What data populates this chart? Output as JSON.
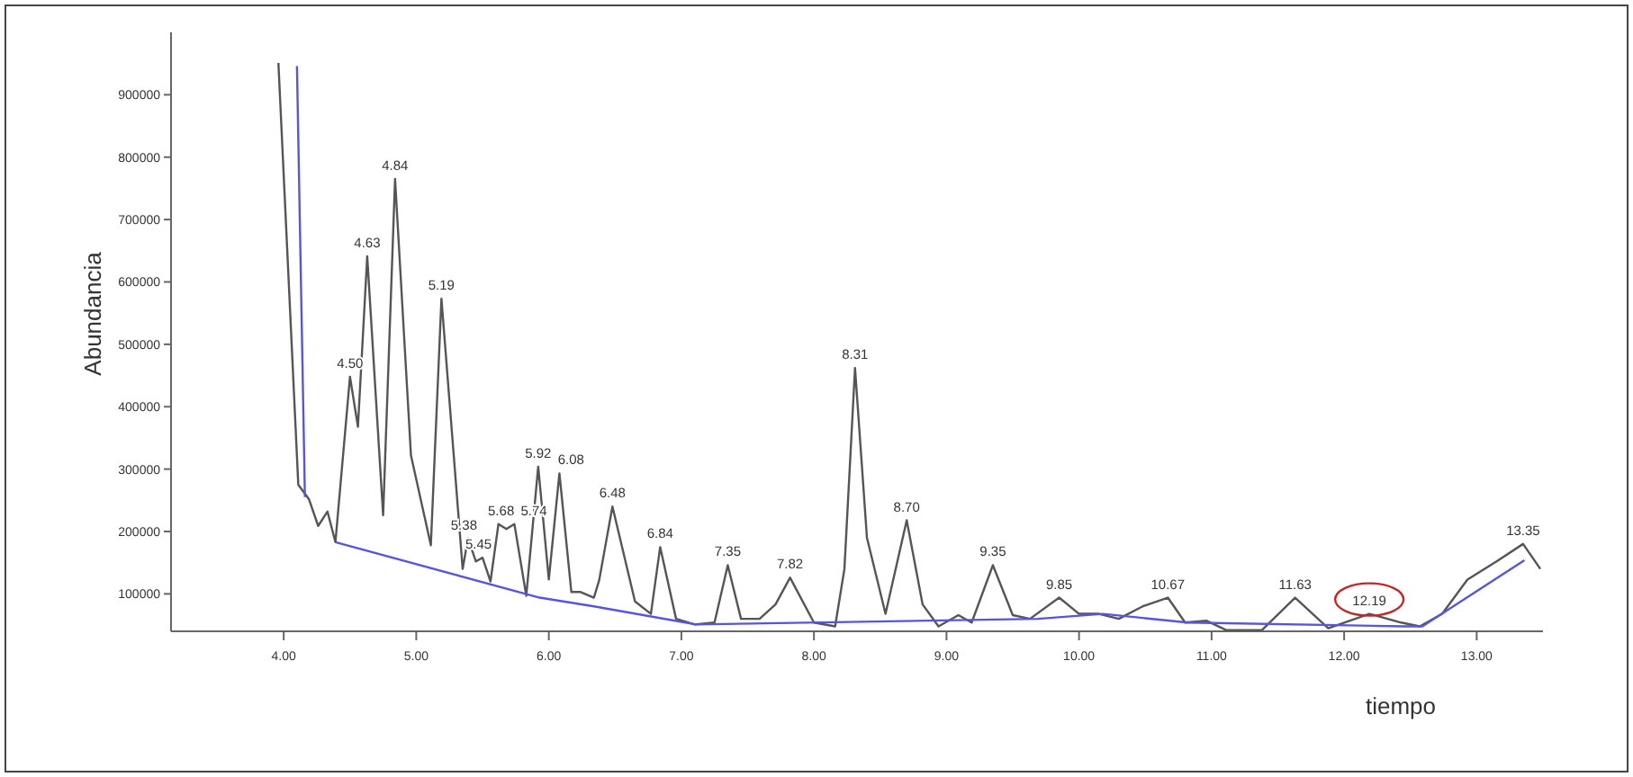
{
  "chart_data": {
    "type": "line",
    "xlabel": "tiempo",
    "ylabel": "Abundancia",
    "xlim": [
      3.15,
      13.5
    ],
    "ylim": [
      40000,
      1000000
    ],
    "xticks": [
      {
        "value": 4,
        "label": "4.00"
      },
      {
        "value": 5,
        "label": "5.00"
      },
      {
        "value": 6,
        "label": "6.00"
      },
      {
        "value": 7,
        "label": "7.00"
      },
      {
        "value": 8,
        "label": "8.00"
      },
      {
        "value": 9,
        "label": "9.00"
      },
      {
        "value": 10,
        "label": "10.00"
      },
      {
        "value": 11,
        "label": "11.00"
      },
      {
        "value": 12,
        "label": "12.00"
      },
      {
        "value": 13,
        "label": "13.00"
      }
    ],
    "yticks": [
      100000,
      200000,
      300000,
      400000,
      500000,
      600000,
      700000,
      800000,
      900000
    ],
    "grid": false,
    "marker": "none",
    "line_style": "solid",
    "series": [
      {
        "color": "#555555",
        "x": [
          3.96,
          4.11,
          4.19,
          4.26,
          4.33,
          4.39,
          4.5,
          4.56,
          4.63,
          4.75,
          4.84,
          4.96,
          5.11,
          5.19,
          5.35,
          5.39,
          5.45,
          5.5,
          5.56,
          5.62,
          5.68,
          5.74,
          5.83,
          5.92,
          6.0,
          6.08,
          6.17,
          6.24,
          6.34,
          6.38,
          6.48,
          6.65,
          6.77,
          6.84,
          6.96,
          7.1,
          7.25,
          7.35,
          7.45,
          7.59,
          7.71,
          7.82,
          8.0,
          8.16,
          8.23,
          8.31,
          8.4,
          8.54,
          8.7,
          8.82,
          8.94,
          9.09,
          9.19,
          9.35,
          9.5,
          9.63,
          9.85,
          10.0,
          10.15,
          10.3,
          10.48,
          10.67,
          10.8,
          10.96,
          11.11,
          11.38,
          11.63,
          11.88,
          12.19,
          12.43,
          12.57,
          12.74,
          12.93,
          13.15,
          13.35,
          13.48
        ],
        "values": [
          951000,
          275000,
          252000,
          209000,
          232000,
          183000,
          448000,
          368000,
          641000,
          226000,
          765000,
          322000,
          178000,
          573000,
          140000,
          189000,
          152000,
          158000,
          120000,
          212000,
          204000,
          212000,
          97000,
          304000,
          123000,
          293000,
          103000,
          103000,
          94000,
          122000,
          240000,
          88000,
          68000,
          175000,
          60000,
          51000,
          54000,
          146000,
          60000,
          60000,
          83000,
          126000,
          54000,
          48000,
          140000,
          462000,
          190000,
          68000,
          218000,
          83000,
          48000,
          66000,
          54000,
          146000,
          66000,
          60000,
          94000,
          68000,
          68000,
          60000,
          80000,
          94000,
          54000,
          57000,
          42000,
          42000,
          94000,
          45000,
          68000,
          54000,
          48000,
          68000,
          123000,
          152000,
          180000,
          140000
        ]
      },
      {
        "color": "#5555dd",
        "x": [
          4.1,
          4.16,
          4.2,
          4.39,
          5.93,
          6.34,
          7.11,
          9.69,
          10.18,
          10.82,
          12.45,
          12.59,
          13.36
        ],
        "values": [
          946000,
          255000,
          null,
          183000,
          94000,
          80000,
          51000,
          60000,
          68000,
          54000,
          48000,
          48000,
          154000
        ]
      }
    ],
    "annotations": [
      {
        "text": "4.50",
        "x": 4.5,
        "y": 448000
      },
      {
        "text": "4.63",
        "x": 4.63,
        "y": 641000
      },
      {
        "text": "4.84",
        "x": 4.84,
        "y": 765000
      },
      {
        "text": "5.19",
        "x": 5.19,
        "y": 573000
      },
      {
        "text": "5.38",
        "x": 5.36,
        "y": 189000
      },
      {
        "text": "5.45",
        "x": 5.47,
        "y": 158000
      },
      {
        "text": "5.68",
        "x": 5.64,
        "y": 212000
      },
      {
        "text": "5.74",
        "x": 5.77,
        "y": 212000
      },
      {
        "text": "5.92",
        "x": 5.92,
        "y": 304000
      },
      {
        "text": "6.08",
        "x": 6.08,
        "y": 293000
      },
      {
        "text": "6.48",
        "x": 6.48,
        "y": 240000
      },
      {
        "text": "6.84",
        "x": 6.84,
        "y": 175000
      },
      {
        "text": "7.35",
        "x": 7.35,
        "y": 146000
      },
      {
        "text": "7.82",
        "x": 7.82,
        "y": 126000
      },
      {
        "text": "8.31",
        "x": 8.31,
        "y": 462000
      },
      {
        "text": "8.70",
        "x": 8.7,
        "y": 218000
      },
      {
        "text": "9.35",
        "x": 9.35,
        "y": 146000
      },
      {
        "text": "9.85",
        "x": 9.85,
        "y": 94000
      },
      {
        "text": "10.67",
        "x": 10.67,
        "y": 94000
      },
      {
        "text": "11.63",
        "x": 11.63,
        "y": 94000
      },
      {
        "text": "12.19",
        "x": 12.19,
        "y": 68000
      },
      {
        "text": "13.35",
        "x": 13.35,
        "y": 180000
      }
    ]
  }
}
